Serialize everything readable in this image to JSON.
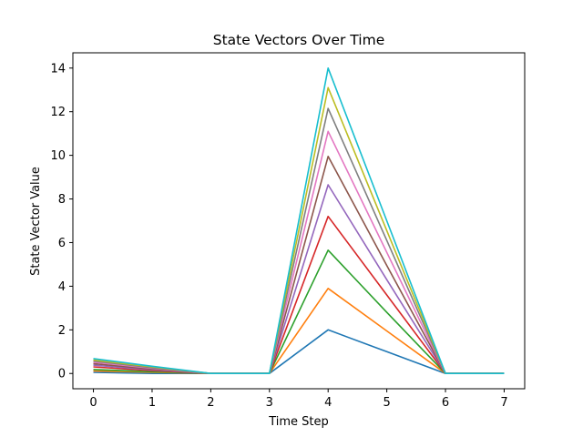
{
  "chart_data": {
    "type": "line",
    "title": "State Vectors Over Time",
    "xlabel": "Time Step",
    "ylabel": "State Vector Value",
    "x": [
      0,
      1,
      2,
      3,
      4,
      5,
      6,
      7
    ],
    "xlim": [
      -0.35,
      7.35
    ],
    "ylim": [
      -0.7,
      14.7
    ],
    "xticks": [
      0,
      1,
      2,
      3,
      4,
      5,
      6,
      7
    ],
    "yticks": [
      0,
      2,
      4,
      6,
      8,
      10,
      12,
      14
    ],
    "grid": false,
    "series": [
      {
        "color": "#1f77b4",
        "values": [
          0.05,
          0.0,
          0.0,
          0.0,
          2.0,
          1.0,
          0.0,
          0.0
        ]
      },
      {
        "color": "#ff7f0e",
        "values": [
          0.12,
          0.05,
          0.0,
          0.0,
          3.9,
          1.95,
          0.0,
          0.0
        ]
      },
      {
        "color": "#2ca02c",
        "values": [
          0.18,
          0.08,
          0.0,
          0.0,
          5.65,
          2.8,
          0.0,
          0.0
        ]
      },
      {
        "color": "#d62728",
        "values": [
          0.3,
          0.13,
          0.0,
          0.0,
          7.2,
          3.6,
          0.0,
          0.0
        ]
      },
      {
        "color": "#9467bd",
        "values": [
          0.38,
          0.17,
          0.0,
          0.0,
          8.65,
          4.3,
          0.0,
          0.0
        ]
      },
      {
        "color": "#8c564b",
        "values": [
          0.45,
          0.2,
          0.0,
          0.0,
          9.95,
          4.95,
          0.0,
          0.0
        ]
      },
      {
        "color": "#e377c2",
        "values": [
          0.52,
          0.24,
          0.0,
          0.0,
          11.1,
          5.55,
          0.0,
          0.0
        ]
      },
      {
        "color": "#7f7f7f",
        "values": [
          0.57,
          0.27,
          0.0,
          0.0,
          12.15,
          6.1,
          0.0,
          0.0
        ]
      },
      {
        "color": "#bcbd22",
        "values": [
          0.62,
          0.3,
          0.0,
          0.0,
          13.1,
          6.55,
          0.0,
          0.0
        ]
      },
      {
        "color": "#17becf",
        "values": [
          0.68,
          0.33,
          0.0,
          0.0,
          14.0,
          7.0,
          0.0,
          0.0
        ]
      }
    ]
  }
}
